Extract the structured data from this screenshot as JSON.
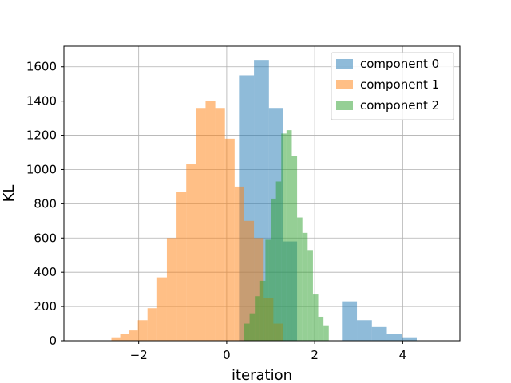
{
  "chart_data": {
    "type": "histogram",
    "xlabel": "iteration",
    "ylabel": "KL",
    "xlim": [
      -3.7,
      5.3
    ],
    "ylim": [
      0,
      1720
    ],
    "x_ticks": [
      -2,
      0,
      2,
      4
    ],
    "x_tick_labels": [
      "−2",
      "0",
      "2",
      "4"
    ],
    "y_ticks": [
      0,
      200,
      400,
      600,
      800,
      1000,
      1200,
      1400,
      1600
    ],
    "y_tick_labels": [
      "0",
      "200",
      "400",
      "600",
      "800",
      "1000",
      "1200",
      "1400",
      "1600"
    ],
    "grid": true,
    "legend_position": "top-right",
    "bar_alpha": 0.5,
    "series": [
      {
        "name": "component 0",
        "color": "#1f77b4",
        "bin_edges": [
          -3.4,
          -3.06,
          -2.72,
          -2.38,
          -2.04,
          -1.7,
          -1.36,
          -1.02,
          -0.68,
          -0.34,
          0.0,
          0.28,
          0.62,
          0.96,
          1.28,
          1.6,
          1.94,
          2.28,
          2.62,
          2.96,
          3.3,
          3.64,
          3.98,
          4.32,
          4.66,
          5.0
        ],
        "counts": [
          0,
          0,
          0,
          0,
          0,
          0,
          0,
          0,
          0,
          0,
          0,
          1550,
          1640,
          1360,
          580,
          0,
          0,
          0,
          230,
          120,
          80,
          40,
          20,
          0,
          0
        ]
      },
      {
        "name": "component 1",
        "color": "#ff7f0e",
        "bin_edges": [
          -2.62,
          -2.42,
          -2.22,
          -2.02,
          -1.8,
          -1.58,
          -1.36,
          -1.14,
          -0.92,
          -0.7,
          -0.48,
          -0.26,
          -0.04,
          0.18,
          0.4,
          0.62,
          0.84,
          1.06,
          1.28
        ],
        "counts": [
          20,
          40,
          60,
          120,
          190,
          370,
          600,
          870,
          1030,
          1360,
          1400,
          1360,
          1180,
          900,
          700,
          600,
          250,
          100
        ]
      },
      {
        "name": "component 2",
        "color": "#2ca02c",
        "bin_edges": [
          0.4,
          0.52,
          0.64,
          0.76,
          0.88,
          1.0,
          1.12,
          1.24,
          1.36,
          1.48,
          1.6,
          1.72,
          1.84,
          1.96,
          2.08,
          2.2,
          2.32,
          2.44,
          2.56,
          2.68,
          2.8
        ],
        "counts": [
          100,
          160,
          260,
          350,
          590,
          830,
          930,
          1210,
          1230,
          1080,
          720,
          630,
          530,
          270,
          140,
          90,
          0,
          0,
          0,
          0
        ]
      }
    ]
  }
}
